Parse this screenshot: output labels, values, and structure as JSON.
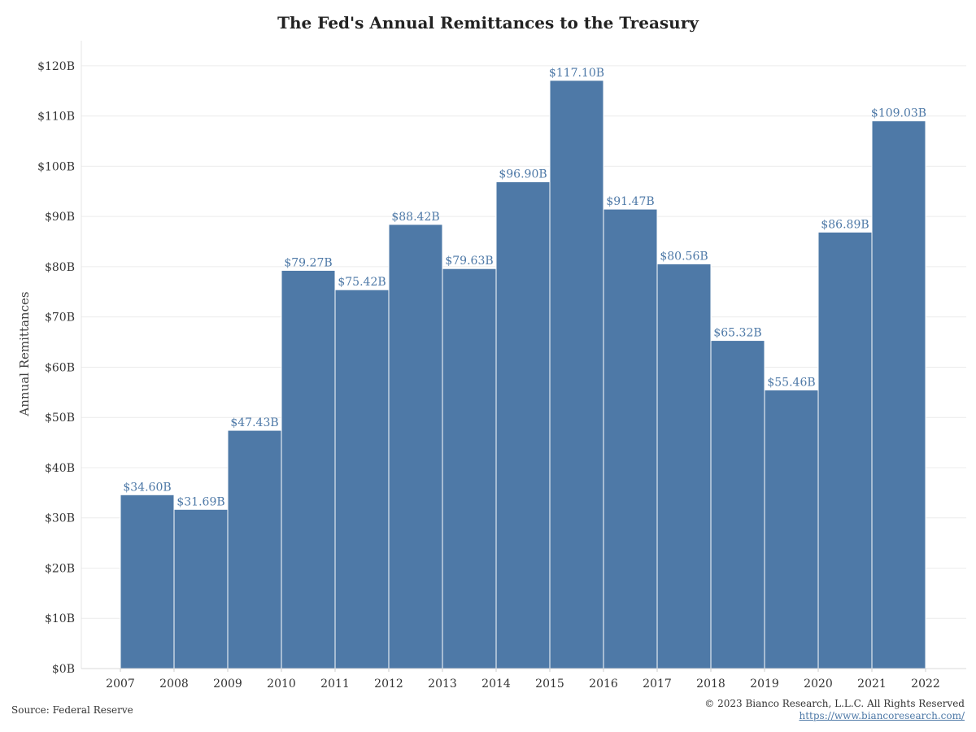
{
  "title": "The Fed's Annual Remittances to the Treasury",
  "chart_data": {
    "type": "bar",
    "categories": [
      "2007",
      "2008",
      "2009",
      "2010",
      "2011",
      "2012",
      "2013",
      "2014",
      "2015",
      "2016",
      "2017",
      "2018",
      "2019",
      "2020",
      "2021"
    ],
    "x_tick_labels": [
      "2007",
      "2008",
      "2009",
      "2010",
      "2011",
      "2012",
      "2013",
      "2014",
      "2015",
      "2016",
      "2017",
      "2018",
      "2019",
      "2020",
      "2021",
      "2022"
    ],
    "values": [
      34.6,
      31.69,
      47.43,
      79.27,
      75.42,
      88.42,
      79.63,
      96.9,
      117.1,
      91.47,
      80.56,
      65.32,
      55.46,
      86.89,
      109.03
    ],
    "data_labels": [
      "$34.60B",
      "$31.69B",
      "$47.43B",
      "$79.27B",
      "$75.42B",
      "$88.42B",
      "$79.63B",
      "$96.90B",
      "$117.10B",
      "$91.47B",
      "$80.56B",
      "$65.32B",
      "$55.46B",
      "$86.89B",
      "$109.03B"
    ],
    "y_ticks": [
      0,
      10,
      20,
      30,
      40,
      50,
      60,
      70,
      80,
      90,
      100,
      110,
      120
    ],
    "y_tick_labels": [
      "$0B",
      "$10B",
      "$20B",
      "$30B",
      "$40B",
      "$50B",
      "$60B",
      "$70B",
      "$80B",
      "$90B",
      "$100B",
      "$110B",
      "$120B"
    ],
    "ylim": [
      0,
      125
    ],
    "xlabel": "",
    "ylabel": "Annual Remittances",
    "grid": true,
    "bar_color": "#4e79a7",
    "label_color": "#4e79a7"
  },
  "footer": {
    "source": "Source: Federal Reserve",
    "copyright": "© 2023 Bianco Research, L.L.C. All Rights Reserved",
    "url": "https://www.biancoresearch.com/"
  }
}
